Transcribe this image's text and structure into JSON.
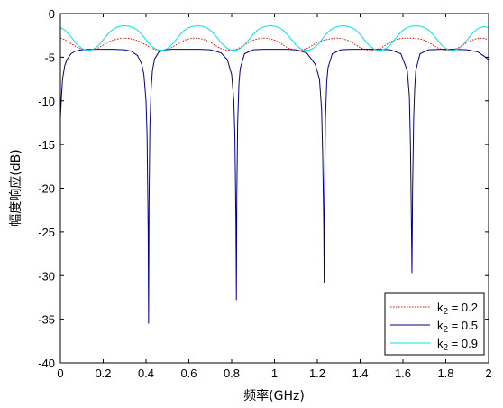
{
  "chart_data": {
    "type": "line",
    "title": "",
    "xlabel": "频率(GHz)",
    "ylabel": "幅度响应(dB)",
    "xlim": [
      0,
      2
    ],
    "ylim": [
      -40,
      0
    ],
    "xticks": [
      0,
      0.2,
      0.4,
      0.6,
      0.8,
      1,
      1.2,
      1.4,
      1.6,
      1.8,
      2
    ],
    "xtick_labels": [
      "0",
      "0.2",
      "0.4",
      "0.6",
      "0.8",
      "1",
      "1.2",
      "1.4",
      "1.6",
      "1.8",
      "2"
    ],
    "yticks": [
      0,
      -5,
      -10,
      -15,
      -20,
      -25,
      -30,
      -35,
      -40
    ],
    "ytick_labels": [
      "0",
      "-5",
      "-10",
      "-15",
      "-20",
      "-25",
      "-30",
      "-35",
      "-40"
    ],
    "grid": false,
    "legend_position": "bottom-right",
    "series": [
      {
        "name": "k2 = 0.2",
        "legend_base": "k",
        "legend_sub": "2",
        "legend_rest": " = 0.2",
        "color": "#ff0000",
        "style": "dotted",
        "x": [
          0,
          0.02,
          0.04,
          0.06,
          0.08,
          0.1,
          0.12,
          0.14,
          0.16,
          0.18,
          0.2,
          0.22,
          0.24,
          0.26,
          0.28,
          0.3,
          0.32,
          0.34,
          0.36,
          0.38,
          0.4,
          0.41,
          0.42,
          0.44,
          0.46,
          0.48,
          0.5,
          0.52,
          0.54,
          0.56,
          0.58,
          0.6,
          0.62,
          0.64,
          0.66,
          0.68,
          0.7,
          0.72,
          0.74,
          0.76,
          0.78,
          0.8,
          0.82,
          0.84,
          0.86,
          0.88,
          0.9,
          0.92,
          0.94,
          0.96,
          0.98,
          1.0,
          1.02,
          1.04,
          1.06,
          1.08,
          1.1,
          1.12,
          1.14,
          1.16,
          1.18,
          1.2,
          1.23,
          1.26,
          1.28,
          1.3,
          1.32,
          1.34,
          1.36,
          1.38,
          1.4,
          1.42,
          1.44,
          1.46,
          1.48,
          1.5,
          1.52,
          1.54,
          1.56,
          1.58,
          1.6,
          1.64,
          1.68,
          1.7,
          1.72,
          1.74,
          1.76,
          1.78,
          1.8,
          1.82,
          1.84,
          1.86,
          1.88,
          1.9,
          1.92,
          1.94,
          1.96,
          1.98,
          2.0
        ],
        "y": [
          -2.8,
          -3.0,
          -3.3,
          -3.6,
          -3.9,
          -4.1,
          -4.2,
          -4.2,
          -4.1,
          -3.9,
          -3.6,
          -3.3,
          -3.1,
          -2.95,
          -2.85,
          -2.82,
          -2.85,
          -2.95,
          -3.1,
          -3.35,
          -3.6,
          -3.75,
          -3.9,
          -4.1,
          -4.2,
          -4.2,
          -4.1,
          -3.9,
          -3.6,
          -3.3,
          -3.05,
          -2.9,
          -2.82,
          -2.82,
          -2.9,
          -3.05,
          -3.3,
          -3.6,
          -3.9,
          -4.1,
          -4.2,
          -4.2,
          -4.1,
          -3.9,
          -3.6,
          -3.3,
          -3.05,
          -2.9,
          -2.82,
          -2.82,
          -2.9,
          -3.05,
          -3.3,
          -3.6,
          -3.9,
          -4.1,
          -4.2,
          -4.2,
          -4.1,
          -3.9,
          -3.6,
          -3.3,
          -3.05,
          -2.9,
          -2.82,
          -2.82,
          -2.9,
          -3.05,
          -3.3,
          -3.6,
          -3.9,
          -4.1,
          -4.2,
          -4.2,
          -4.1,
          -3.9,
          -3.6,
          -3.3,
          -3.05,
          -2.9,
          -2.82,
          -2.82,
          -2.9,
          -3.05,
          -3.3,
          -3.6,
          -3.9,
          -4.1,
          -4.2,
          -4.2,
          -4.1,
          -3.9,
          -3.6,
          -3.3,
          -3.05,
          -2.9,
          -2.82,
          -2.85,
          -3.0
        ]
      },
      {
        "name": "k2 = 0.5",
        "legend_base": "k",
        "legend_sub": "2",
        "legend_rest": " = 0.5",
        "color": "#00008b",
        "style": "solid",
        "x": [
          0,
          0.002,
          0.005,
          0.01,
          0.02,
          0.03,
          0.05,
          0.07,
          0.1,
          0.15,
          0.2,
          0.25,
          0.3,
          0.33,
          0.36,
          0.38,
          0.39,
          0.4,
          0.405,
          0.41,
          0.412,
          0.414,
          0.418,
          0.424,
          0.43,
          0.44,
          0.46,
          0.49,
          0.52,
          0.56,
          0.6,
          0.65,
          0.7,
          0.75,
          0.78,
          0.8,
          0.81,
          0.815,
          0.82,
          0.822,
          0.824,
          0.828,
          0.834,
          0.84,
          0.86,
          0.9,
          0.95,
          1.0,
          1.05,
          1.1,
          1.15,
          1.19,
          1.21,
          1.22,
          1.225,
          1.23,
          1.232,
          1.234,
          1.238,
          1.244,
          1.25,
          1.27,
          1.31,
          1.36,
          1.42,
          1.48,
          1.54,
          1.59,
          1.62,
          1.63,
          1.635,
          1.64,
          1.642,
          1.645,
          1.65,
          1.655,
          1.66,
          1.68,
          1.72,
          1.78,
          1.84,
          1.9,
          1.95,
          1.98,
          1.99,
          2.0
        ],
        "y": [
          -12,
          -11,
          -9.5,
          -7.5,
          -6.0,
          -5.3,
          -4.6,
          -4.3,
          -4.15,
          -4.1,
          -4.1,
          -4.1,
          -4.15,
          -4.3,
          -4.8,
          -5.8,
          -7.0,
          -10.0,
          -14.0,
          -25.0,
          -35.5,
          -22.0,
          -13.0,
          -8.5,
          -6.5,
          -5.2,
          -4.4,
          -4.15,
          -4.1,
          -4.1,
          -4.1,
          -4.1,
          -4.15,
          -4.5,
          -5.3,
          -7.0,
          -10.0,
          -14.0,
          -24.0,
          -32.8,
          -21.0,
          -12.5,
          -8.0,
          -6.3,
          -4.6,
          -4.15,
          -4.1,
          -4.1,
          -4.1,
          -4.15,
          -4.5,
          -5.8,
          -7.5,
          -11.0,
          -16.0,
          -24.0,
          -30.8,
          -20.0,
          -12.0,
          -7.8,
          -6.2,
          -4.6,
          -4.15,
          -4.1,
          -4.1,
          -4.1,
          -4.15,
          -4.6,
          -6.5,
          -9.5,
          -15.0,
          -25.0,
          -29.7,
          -20.0,
          -12.0,
          -8.5,
          -6.5,
          -4.6,
          -4.15,
          -4.1,
          -4.1,
          -4.15,
          -4.4,
          -4.9,
          -5.1,
          -5.3
        ]
      },
      {
        "name": "k2 = 0.9",
        "legend_base": "k",
        "legend_sub": "2",
        "legend_rest": " = 0.9",
        "color": "#00e5e5",
        "style": "solid",
        "x": [
          0,
          0.02,
          0.04,
          0.06,
          0.08,
          0.1,
          0.12,
          0.14,
          0.16,
          0.18,
          0.2,
          0.22,
          0.24,
          0.26,
          0.28,
          0.3,
          0.32,
          0.34,
          0.36,
          0.38,
          0.4,
          0.42,
          0.44,
          0.46,
          0.48,
          0.5,
          0.52,
          0.54,
          0.56,
          0.58,
          0.6,
          0.62,
          0.64,
          0.66,
          0.68,
          0.7,
          0.72,
          0.74,
          0.76,
          0.78,
          0.8,
          0.82,
          0.84,
          0.86,
          0.88,
          0.9,
          0.92,
          0.94,
          0.96,
          0.98,
          1.0,
          1.02,
          1.04,
          1.06,
          1.08,
          1.1,
          1.12,
          1.14,
          1.16,
          1.18,
          1.2,
          1.22,
          1.24,
          1.26,
          1.28,
          1.3,
          1.32,
          1.34,
          1.36,
          1.38,
          1.4,
          1.42,
          1.44,
          1.46,
          1.48,
          1.5,
          1.52,
          1.54,
          1.56,
          1.58,
          1.6,
          1.62,
          1.64,
          1.66,
          1.68,
          1.7,
          1.72,
          1.74,
          1.76,
          1.78,
          1.8,
          1.82,
          1.84,
          1.86,
          1.88,
          1.9,
          1.92,
          1.94,
          1.96,
          1.98,
          2.0
        ],
        "y": [
          -1.6,
          -1.9,
          -2.4,
          -3.0,
          -3.6,
          -4.0,
          -4.2,
          -4.2,
          -4.0,
          -3.6,
          -3.0,
          -2.4,
          -1.9,
          -1.6,
          -1.45,
          -1.4,
          -1.45,
          -1.6,
          -1.9,
          -2.4,
          -3.0,
          -3.6,
          -4.0,
          -4.2,
          -4.2,
          -4.0,
          -3.6,
          -3.0,
          -2.4,
          -1.9,
          -1.6,
          -1.45,
          -1.4,
          -1.45,
          -1.6,
          -1.9,
          -2.4,
          -3.0,
          -3.6,
          -4.0,
          -4.2,
          -4.2,
          -4.0,
          -3.6,
          -3.0,
          -2.4,
          -1.9,
          -1.6,
          -1.45,
          -1.4,
          -1.45,
          -1.6,
          -1.9,
          -2.4,
          -3.0,
          -3.6,
          -4.0,
          -4.2,
          -4.2,
          -4.0,
          -3.6,
          -3.0,
          -2.4,
          -1.9,
          -1.6,
          -1.45,
          -1.4,
          -1.45,
          -1.6,
          -1.9,
          -2.4,
          -3.0,
          -3.6,
          -4.0,
          -4.2,
          -4.2,
          -4.0,
          -3.6,
          -3.0,
          -2.4,
          -1.9,
          -1.6,
          -1.45,
          -1.4,
          -1.45,
          -1.6,
          -1.9,
          -2.4,
          -3.0,
          -3.6,
          -4.0,
          -4.2,
          -4.2,
          -4.0,
          -3.6,
          -3.0,
          -2.4,
          -1.9,
          -1.6,
          -1.5,
          -1.6
        ]
      }
    ]
  }
}
